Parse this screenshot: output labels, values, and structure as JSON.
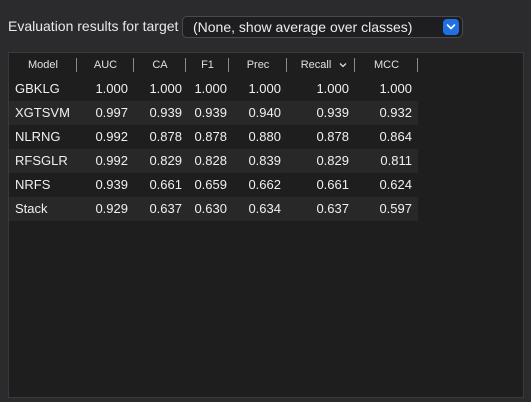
{
  "target": {
    "label": "Evaluation results for target",
    "selected": "(None, show average over classes)"
  },
  "table": {
    "columns": [
      {
        "key": "model",
        "label": "Model"
      },
      {
        "key": "auc",
        "label": "AUC"
      },
      {
        "key": "ca",
        "label": "CA"
      },
      {
        "key": "f1",
        "label": "F1"
      },
      {
        "key": "prec",
        "label": "Prec"
      },
      {
        "key": "recall",
        "label": "Recall",
        "sorted": "descending"
      },
      {
        "key": "mcc",
        "label": "MCC"
      }
    ],
    "rows": [
      {
        "model": "GBKLG",
        "auc": "1.000",
        "ca": "1.000",
        "f1": "1.000",
        "prec": "1.000",
        "recall": "1.000",
        "mcc": "1.000"
      },
      {
        "model": "XGTSVM",
        "auc": "0.997",
        "ca": "0.939",
        "f1": "0.939",
        "prec": "0.940",
        "recall": "0.939",
        "mcc": "0.932"
      },
      {
        "model": "NLRNG",
        "auc": "0.992",
        "ca": "0.878",
        "f1": "0.878",
        "prec": "0.880",
        "recall": "0.878",
        "mcc": "0.864"
      },
      {
        "model": "RFSGLR",
        "auc": "0.992",
        "ca": "0.829",
        "f1": "0.828",
        "prec": "0.839",
        "recall": "0.829",
        "mcc": "0.811"
      },
      {
        "model": "NRFS",
        "auc": "0.939",
        "ca": "0.661",
        "f1": "0.659",
        "prec": "0.662",
        "recall": "0.661",
        "mcc": "0.624"
      },
      {
        "model": "Stack",
        "auc": "0.929",
        "ca": "0.637",
        "f1": "0.630",
        "prec": "0.634",
        "recall": "0.637",
        "mcc": "0.597"
      }
    ]
  },
  "colors": {
    "accent": "#1f6fe5",
    "panel_bg": "#1e1e1e",
    "row_alt_bg": "#282828",
    "window_bg": "#2b2b2d"
  },
  "icons": {
    "select": "chevron-down-icon",
    "sort": "sort-descending-icon"
  }
}
